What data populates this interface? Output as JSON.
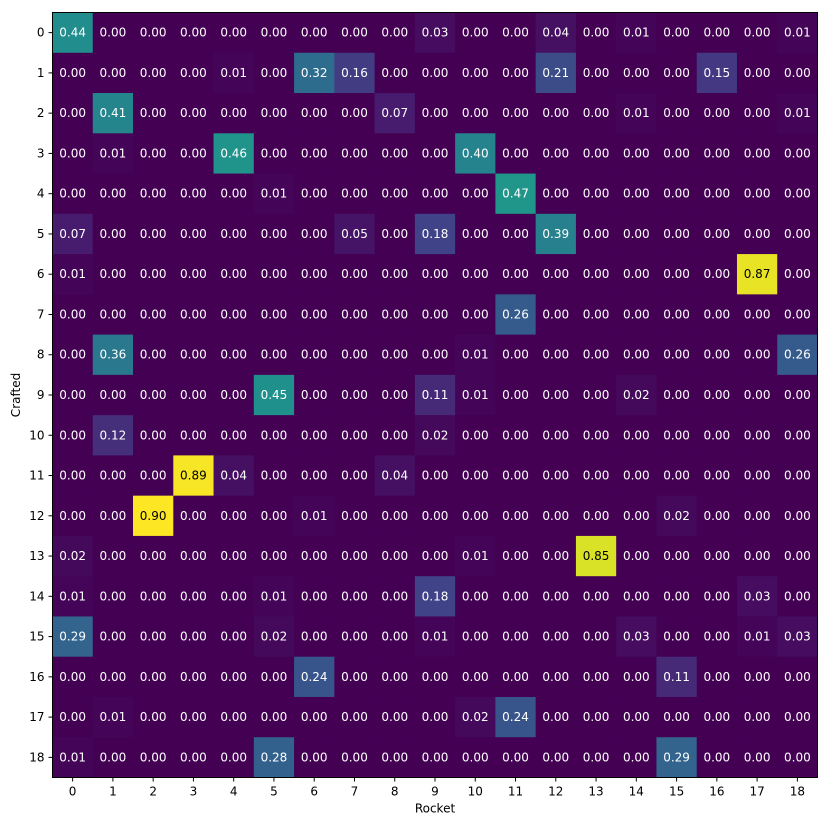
{
  "chart_data": {
    "type": "heatmap",
    "xlabel": "Rocket",
    "ylabel": "Crafted",
    "x_categories": [
      "0",
      "1",
      "2",
      "3",
      "4",
      "5",
      "6",
      "7",
      "8",
      "9",
      "10",
      "11",
      "12",
      "13",
      "14",
      "15",
      "16",
      "17",
      "18"
    ],
    "y_categories": [
      "0",
      "1",
      "2",
      "3",
      "4",
      "5",
      "6",
      "7",
      "8",
      "9",
      "10",
      "11",
      "12",
      "13",
      "14",
      "15",
      "16",
      "17",
      "18"
    ],
    "colormap": "viridis",
    "vmin": 0.0,
    "vmax": 0.9,
    "values": [
      [
        0.44,
        0.0,
        0.0,
        0.0,
        0.0,
        0.0,
        0.0,
        0.0,
        0.0,
        0.03,
        0.0,
        0.0,
        0.04,
        0.0,
        0.01,
        0.0,
        0.0,
        0.0,
        0.01
      ],
      [
        0.0,
        0.0,
        0.0,
        0.0,
        0.01,
        0.0,
        0.32,
        0.16,
        0.0,
        0.0,
        0.0,
        0.0,
        0.21,
        0.0,
        0.0,
        0.0,
        0.15,
        0.0,
        0.0
      ],
      [
        0.0,
        0.41,
        0.0,
        0.0,
        0.0,
        0.0,
        0.0,
        0.0,
        0.07,
        0.0,
        0.0,
        0.0,
        0.0,
        0.0,
        0.01,
        0.0,
        0.0,
        0.0,
        0.01
      ],
      [
        0.0,
        0.01,
        0.0,
        0.0,
        0.46,
        0.0,
        0.0,
        0.0,
        0.0,
        0.0,
        0.4,
        0.0,
        0.0,
        0.0,
        0.0,
        0.0,
        0.0,
        0.0,
        0.0
      ],
      [
        0.0,
        0.0,
        0.0,
        0.0,
        0.0,
        0.01,
        0.0,
        0.0,
        0.0,
        0.0,
        0.0,
        0.47,
        0.0,
        0.0,
        0.0,
        0.0,
        0.0,
        0.0,
        0.0
      ],
      [
        0.07,
        0.0,
        0.0,
        0.0,
        0.0,
        0.0,
        0.0,
        0.05,
        0.0,
        0.18,
        0.0,
        0.0,
        0.39,
        0.0,
        0.0,
        0.0,
        0.0,
        0.0,
        0.0
      ],
      [
        0.01,
        0.0,
        0.0,
        0.0,
        0.0,
        0.0,
        0.0,
        0.0,
        0.0,
        0.0,
        0.0,
        0.0,
        0.0,
        0.0,
        0.0,
        0.0,
        0.0,
        0.87,
        0.0
      ],
      [
        0.0,
        0.0,
        0.0,
        0.0,
        0.0,
        0.0,
        0.0,
        0.0,
        0.0,
        0.0,
        0.0,
        0.26,
        0.0,
        0.0,
        0.0,
        0.0,
        0.0,
        0.0,
        0.0
      ],
      [
        0.0,
        0.36,
        0.0,
        0.0,
        0.0,
        0.0,
        0.0,
        0.0,
        0.0,
        0.0,
        0.01,
        0.0,
        0.0,
        0.0,
        0.0,
        0.0,
        0.0,
        0.0,
        0.26
      ],
      [
        0.0,
        0.0,
        0.0,
        0.0,
        0.0,
        0.45,
        0.0,
        0.0,
        0.0,
        0.11,
        0.01,
        0.0,
        0.0,
        0.0,
        0.02,
        0.0,
        0.0,
        0.0,
        0.0
      ],
      [
        0.0,
        0.12,
        0.0,
        0.0,
        0.0,
        0.0,
        0.0,
        0.0,
        0.0,
        0.02,
        0.0,
        0.0,
        0.0,
        0.0,
        0.0,
        0.0,
        0.0,
        0.0,
        0.0
      ],
      [
        0.0,
        0.0,
        0.0,
        0.89,
        0.04,
        0.0,
        0.0,
        0.0,
        0.04,
        0.0,
        0.0,
        0.0,
        0.0,
        0.0,
        0.0,
        0.0,
        0.0,
        0.0,
        0.0
      ],
      [
        0.0,
        0.0,
        0.9,
        0.0,
        0.0,
        0.0,
        0.01,
        0.0,
        0.0,
        0.0,
        0.0,
        0.0,
        0.0,
        0.0,
        0.0,
        0.02,
        0.0,
        0.0,
        0.0
      ],
      [
        0.02,
        0.0,
        0.0,
        0.0,
        0.0,
        0.0,
        0.0,
        0.0,
        0.0,
        0.0,
        0.01,
        0.0,
        0.0,
        0.85,
        0.0,
        0.0,
        0.0,
        0.0,
        0.0
      ],
      [
        0.01,
        0.0,
        0.0,
        0.0,
        0.0,
        0.01,
        0.0,
        0.0,
        0.0,
        0.18,
        0.0,
        0.0,
        0.0,
        0.0,
        0.0,
        0.0,
        0.0,
        0.03,
        0.0
      ],
      [
        0.29,
        0.0,
        0.0,
        0.0,
        0.0,
        0.02,
        0.0,
        0.0,
        0.0,
        0.01,
        0.0,
        0.0,
        0.0,
        0.0,
        0.03,
        0.0,
        0.0,
        0.01,
        0.03
      ],
      [
        0.0,
        0.0,
        0.0,
        0.0,
        0.0,
        0.0,
        0.24,
        0.0,
        0.0,
        0.0,
        0.0,
        0.0,
        0.0,
        0.0,
        0.0,
        0.11,
        0.0,
        0.0,
        0.0
      ],
      [
        0.0,
        0.01,
        0.0,
        0.0,
        0.0,
        0.0,
        0.0,
        0.0,
        0.0,
        0.0,
        0.02,
        0.24,
        0.0,
        0.0,
        0.0,
        0.0,
        0.0,
        0.0,
        0.0
      ],
      [
        0.01,
        0.0,
        0.0,
        0.0,
        0.0,
        0.28,
        0.0,
        0.0,
        0.0,
        0.0,
        0.0,
        0.0,
        0.0,
        0.0,
        0.0,
        0.29,
        0.0,
        0.0,
        0.0
      ]
    ]
  }
}
